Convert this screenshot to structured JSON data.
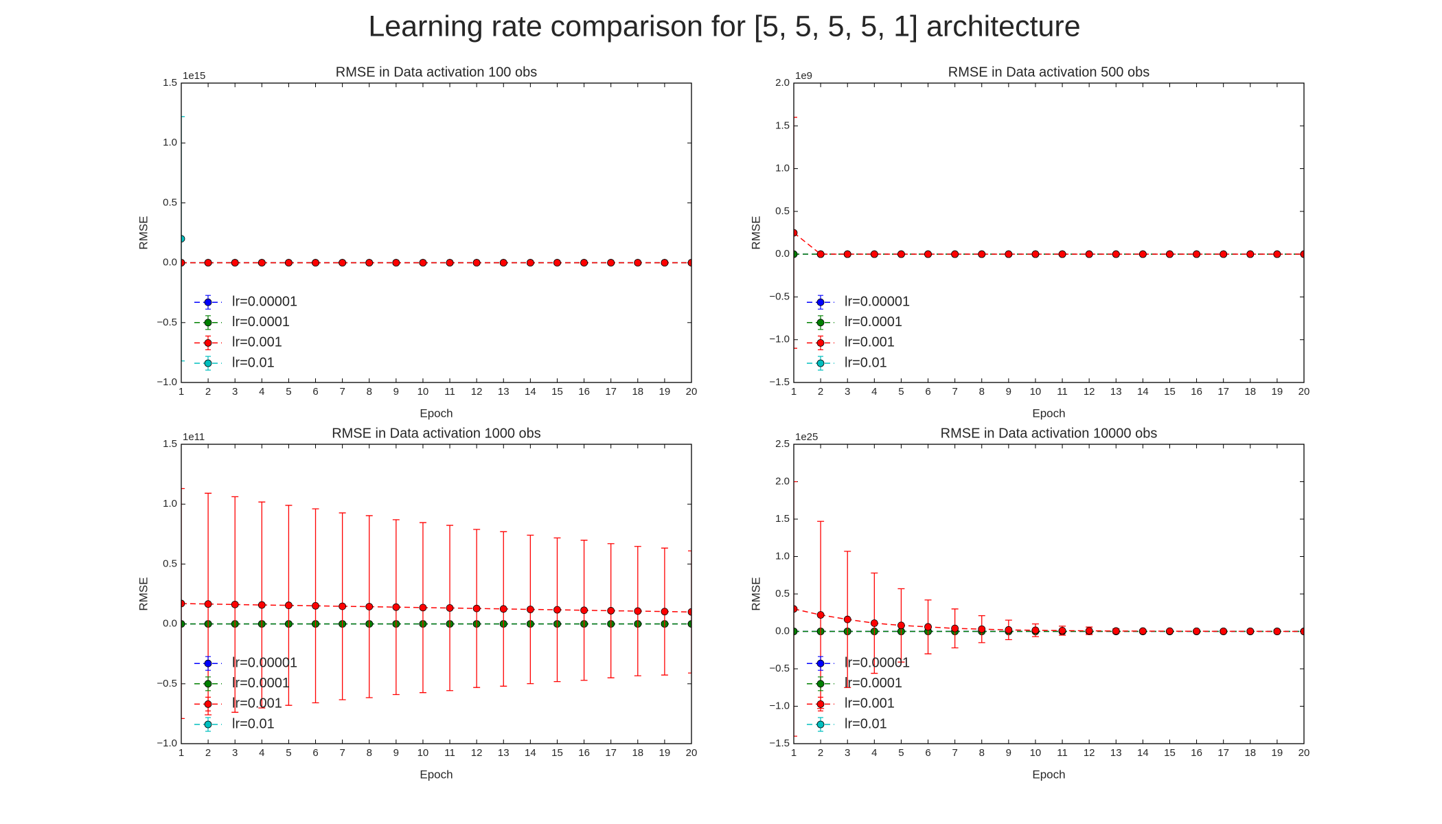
{
  "title": "Learning rate comparison for [5, 5, 5, 5, 1] architecture",
  "chart_data": [
    {
      "type": "line",
      "title": "RMSE in Data activation 100 obs",
      "xlabel": "Epoch",
      "ylabel": "RMSE",
      "offset_label": "1e15",
      "x": [
        1,
        2,
        3,
        4,
        5,
        6,
        7,
        8,
        9,
        10,
        11,
        12,
        13,
        14,
        15,
        16,
        17,
        18,
        19,
        20
      ],
      "xlim": [
        1,
        20
      ],
      "xticks": [
        1,
        2,
        3,
        4,
        5,
        6,
        7,
        8,
        9,
        10,
        11,
        12,
        13,
        14,
        15,
        16,
        17,
        18,
        19,
        20
      ],
      "ylim": [
        -1.0,
        1.5
      ],
      "yticks": [
        {
          "value": -1.0,
          "label": "−1.0"
        },
        {
          "value": -0.5,
          "label": "−0.5"
        },
        {
          "value": 0,
          "label": "0.0"
        },
        0.5,
        {
          "value": 1.0,
          "label": "1.0"
        },
        1.5
      ],
      "legend": "lower left",
      "series": [
        {
          "name": "lr=0.00001",
          "color": "#0000ff",
          "values": [
            0,
            0,
            0,
            0,
            0,
            0,
            0,
            0,
            0,
            0,
            0,
            0,
            0,
            0,
            0,
            0,
            0,
            0,
            0,
            0
          ]
        },
        {
          "name": "lr=0.0001",
          "color": "#008000",
          "values": [
            0,
            0,
            0,
            0,
            0,
            0,
            0,
            0,
            0,
            0,
            0,
            0,
            0,
            0,
            0,
            0,
            0,
            0,
            0,
            0
          ]
        },
        {
          "name": "lr=0.001",
          "color": "#ff0000",
          "values": [
            0,
            0,
            0,
            0,
            0,
            0,
            0,
            0,
            0,
            0,
            0,
            0,
            0,
            0,
            0,
            0,
            0,
            0,
            0,
            0
          ]
        },
        {
          "name": "lr=0.01",
          "color": "#00bfbf",
          "values": [
            0.2,
            null,
            null,
            null,
            null,
            null,
            null,
            null,
            null,
            null,
            null,
            null,
            null,
            null,
            null,
            null,
            null,
            null,
            null,
            null
          ],
          "errors": [
            1.02,
            null,
            null,
            null,
            null,
            null,
            null,
            null,
            null,
            null,
            null,
            null,
            null,
            null,
            null,
            null,
            null,
            null,
            null,
            null
          ]
        }
      ]
    },
    {
      "type": "line",
      "title": "RMSE in Data activation 500 obs",
      "xlabel": "Epoch",
      "ylabel": "RMSE",
      "offset_label": "1e9",
      "x": [
        1,
        2,
        3,
        4,
        5,
        6,
        7,
        8,
        9,
        10,
        11,
        12,
        13,
        14,
        15,
        16,
        17,
        18,
        19,
        20
      ],
      "xlim": [
        1,
        20
      ],
      "xticks": [
        1,
        2,
        3,
        4,
        5,
        6,
        7,
        8,
        9,
        10,
        11,
        12,
        13,
        14,
        15,
        16,
        17,
        18,
        19,
        20
      ],
      "ylim": [
        -1.5,
        2.0
      ],
      "yticks": [
        1.5,
        {
          "value": -1.5,
          "label": "−1.5"
        },
        {
          "value": -1.0,
          "label": "−1.0"
        },
        {
          "value": -0.5,
          "label": "−0.5"
        },
        {
          "value": 0,
          "label": "0.0"
        },
        0.5,
        {
          "value": 1.0,
          "label": "1.0"
        },
        {
          "value": 2.0,
          "label": "2.0"
        }
      ],
      "legend": "lower left",
      "series": [
        {
          "name": "lr=0.00001",
          "color": "#0000ff",
          "values": [
            0,
            0,
            0,
            0,
            0,
            0,
            0,
            0,
            0,
            0,
            0,
            0,
            0,
            0,
            0,
            0,
            0,
            0,
            0,
            0
          ]
        },
        {
          "name": "lr=0.0001",
          "color": "#008000",
          "values": [
            0,
            0,
            0,
            0,
            0,
            0,
            0,
            0,
            0,
            0,
            0,
            0,
            0,
            0,
            0,
            0,
            0,
            0,
            0,
            0
          ]
        },
        {
          "name": "lr=0.001",
          "color": "#ff0000",
          "values": [
            0.25,
            0,
            0,
            0,
            0,
            0,
            0,
            0,
            0,
            0,
            0,
            0,
            0,
            0,
            0,
            0,
            0,
            0,
            0,
            0
          ],
          "errors": [
            1.35,
            null,
            null,
            null,
            null,
            null,
            null,
            null,
            null,
            null,
            null,
            null,
            null,
            null,
            null,
            null,
            null,
            null,
            null,
            null
          ]
        },
        {
          "name": "lr=0.01",
          "color": "#00bfbf",
          "values": [
            null,
            null,
            null,
            null,
            null,
            null,
            null,
            null,
            null,
            null,
            null,
            null,
            null,
            null,
            null,
            null,
            null,
            null,
            null,
            null
          ]
        }
      ]
    },
    {
      "type": "line",
      "title": "RMSE in Data activation 1000 obs",
      "xlabel": "Epoch",
      "ylabel": "RMSE",
      "offset_label": "1e11",
      "x": [
        1,
        2,
        3,
        4,
        5,
        6,
        7,
        8,
        9,
        10,
        11,
        12,
        13,
        14,
        15,
        16,
        17,
        18,
        19,
        20
      ],
      "xlim": [
        1,
        20
      ],
      "xticks": [
        1,
        2,
        3,
        4,
        5,
        6,
        7,
        8,
        9,
        10,
        11,
        12,
        13,
        14,
        15,
        16,
        17,
        18,
        19,
        20
      ],
      "ylim": [
        -1.0,
        1.5
      ],
      "yticks": [
        {
          "value": -1.0,
          "label": "−1.0"
        },
        {
          "value": -0.5,
          "label": "−0.5"
        },
        {
          "value": 0,
          "label": "0.0"
        },
        0.5,
        {
          "value": 1.0,
          "label": "1.0"
        },
        1.5
      ],
      "legend": "lower left",
      "series": [
        {
          "name": "lr=0.00001",
          "color": "#0000ff",
          "values": [
            0,
            0,
            0,
            0,
            0,
            0,
            0,
            0,
            0,
            0,
            0,
            0,
            0,
            0,
            0,
            0,
            0,
            0,
            0,
            0
          ]
        },
        {
          "name": "lr=0.0001",
          "color": "#008000",
          "values": [
            0,
            0,
            0,
            0,
            0,
            0,
            0,
            0,
            0,
            0,
            0,
            0,
            0,
            0,
            0,
            0,
            0,
            0,
            0,
            0
          ]
        },
        {
          "name": "lr=0.001",
          "color": "#ff0000",
          "values": [
            0.17,
            0.166,
            0.162,
            0.158,
            0.155,
            0.151,
            0.147,
            0.144,
            0.14,
            0.136,
            0.133,
            0.129,
            0.125,
            0.121,
            0.118,
            0.114,
            0.11,
            0.107,
            0.103,
            0.1
          ],
          "errors": [
            0.96,
            0.925,
            0.9,
            0.86,
            0.835,
            0.81,
            0.78,
            0.76,
            0.73,
            0.71,
            0.69,
            0.66,
            0.645,
            0.62,
            0.6,
            0.585,
            0.56,
            0.54,
            0.53,
            0.51
          ]
        },
        {
          "name": "lr=0.01",
          "color": "#00bfbf",
          "values": [
            null,
            null,
            null,
            null,
            null,
            null,
            null,
            null,
            null,
            null,
            null,
            null,
            null,
            null,
            null,
            null,
            null,
            null,
            null,
            null
          ]
        }
      ]
    },
    {
      "type": "line",
      "title": "RMSE in Data activation 10000 obs",
      "xlabel": "Epoch",
      "ylabel": "RMSE",
      "offset_label": "1e25",
      "x": [
        1,
        2,
        3,
        4,
        5,
        6,
        7,
        8,
        9,
        10,
        11,
        12,
        13,
        14,
        15,
        16,
        17,
        18,
        19,
        20
      ],
      "xlim": [
        1,
        20
      ],
      "xticks": [
        1,
        2,
        3,
        4,
        5,
        6,
        7,
        8,
        9,
        10,
        11,
        12,
        13,
        14,
        15,
        16,
        17,
        18,
        19,
        20
      ],
      "ylim": [
        -1.5,
        2.5
      ],
      "yticks": [
        {
          "value": -1.5,
          "label": "−1.5"
        },
        {
          "value": -1.0,
          "label": "−1.0"
        },
        {
          "value": -0.5,
          "label": "−0.5"
        },
        {
          "value": 0,
          "label": "0.0"
        },
        0.5,
        {
          "value": 1.0,
          "label": "1.0"
        },
        1.5,
        {
          "value": 2.0,
          "label": "2.0"
        },
        2.5
      ],
      "legend": "lower left",
      "series": [
        {
          "name": "lr=0.00001",
          "color": "#0000ff",
          "values": [
            0,
            0,
            0,
            0,
            0,
            0,
            0,
            0,
            0,
            0,
            0,
            0,
            0,
            0,
            0,
            0,
            0,
            0,
            0,
            0
          ]
        },
        {
          "name": "lr=0.0001",
          "color": "#008000",
          "values": [
            0,
            0,
            0,
            0,
            0,
            0,
            0,
            0,
            0,
            0,
            0,
            0,
            0,
            0,
            0,
            0,
            0,
            0,
            0,
            0
          ]
        },
        {
          "name": "lr=0.001",
          "color": "#ff0000",
          "values": [
            0.3,
            0.22,
            0.16,
            0.11,
            0.08,
            0.06,
            0.04,
            0.03,
            0.02,
            0.015,
            0.01,
            0.008,
            0.005,
            0.004,
            0.003,
            0.002,
            0.001,
            0.001,
            0,
            0
          ],
          "errors": [
            1.7,
            1.25,
            0.91,
            0.67,
            0.49,
            0.36,
            0.26,
            0.18,
            0.13,
            0.085,
            0.06,
            0.05,
            0.03,
            0.02,
            0.01,
            0.01,
            0.01,
            0.01,
            0.01,
            0.01
          ]
        },
        {
          "name": "lr=0.01",
          "color": "#00bfbf",
          "values": [
            null,
            null,
            null,
            null,
            null,
            null,
            null,
            null,
            null,
            null,
            null,
            null,
            null,
            null,
            null,
            null,
            null,
            null,
            null,
            null
          ]
        }
      ]
    }
  ]
}
